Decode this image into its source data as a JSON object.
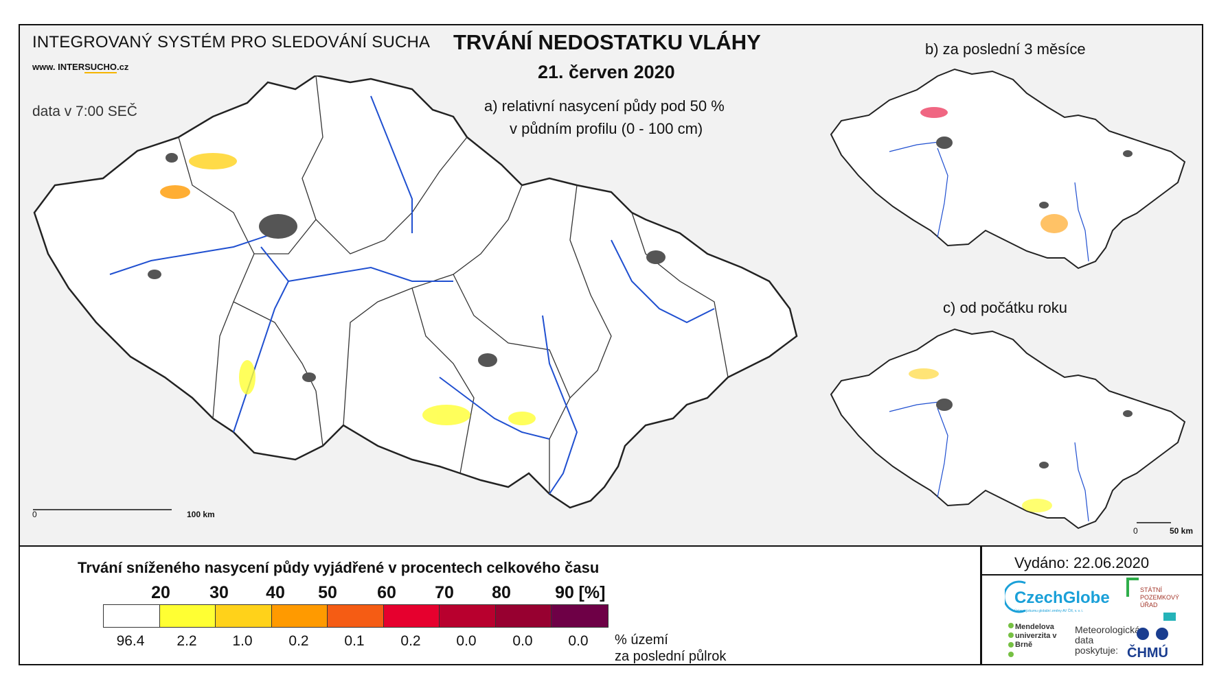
{
  "header": {
    "system_title": "INTEGROVANÝ SYSTÉM PRO SLEDOVÁNÍ SUCHA",
    "website_prefix": "www. INTER",
    "website_highlight": "SUCHO",
    "website_suffix": ".cz",
    "data_time": "data v 7:00 SEČ",
    "main_title": "TRVÁNÍ NEDOSTATKU VLÁHY",
    "date": "21. červen 2020"
  },
  "maps": {
    "main_subtitle_line1": "a) relativní nasycení půdy pod 50 %",
    "main_subtitle_line2": "v půdním profilu (0 - 100 cm)",
    "b_subtitle": "b) za poslední 3 měsíce",
    "c_subtitle": "c) od počátku roku",
    "main_scale_start": "0",
    "main_scale_end": "100 km",
    "small_scale_start": "0",
    "small_scale_end": "50 km"
  },
  "legend": {
    "title": "Trvání sníženého nasycení půdy vyjádřené v procentech celkového času",
    "bins": [
      "20",
      "30",
      "40",
      "50",
      "60",
      "70",
      "80",
      "90"
    ],
    "unit": "[%]",
    "colors": [
      "#ffffff",
      "#ffff33",
      "#ffd21a",
      "#ff9a00",
      "#f55c14",
      "#e6002e",
      "#b8002e",
      "#970030",
      "#6e0046"
    ],
    "area_percent": [
      "96.4",
      "2.2",
      "1.0",
      "0.2",
      "0.1",
      "0.2",
      "0.0",
      "0.0",
      "0.0"
    ],
    "area_label_line1": "% území",
    "area_label_line2": "za poslední půlrok"
  },
  "footer": {
    "issued": "Vydáno: 22.06.2020",
    "czechglobe": "CzechGlobe",
    "czechglobe_sub": "Ústav výzkumu globální změny AV ČR, v. v. i.",
    "spu": "STÁTNÍ POZEMKOVÝ ÚŘAD",
    "mendel": "Mendelova univerzita v Brně",
    "meteo": "Meteorologická data poskytuje:",
    "chmu": "ČHMÚ"
  }
}
